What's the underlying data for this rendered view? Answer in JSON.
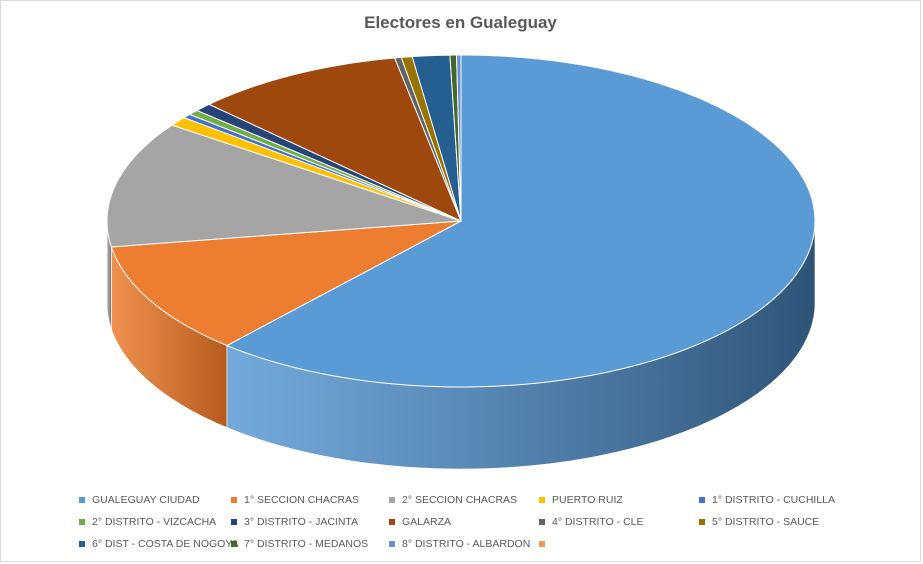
{
  "chart_data": {
    "type": "pie",
    "title": "Electores en Gualeguay",
    "style": "3d",
    "legend_position": "bottom",
    "slices": [
      {
        "label": "GUALEGUAY CIUDAD",
        "value": 61.5,
        "color": "#5b9bd5",
        "side_color": "#2f5478"
      },
      {
        "label": "1° SECCION CHACRAS",
        "value": 11.0,
        "color": "#ed7d31",
        "side_color": "#b55a1e"
      },
      {
        "label": "2° SECCION CHACRAS",
        "value": 12.3,
        "color": "#a5a5a5",
        "side_color": "#737373"
      },
      {
        "label": "PUERTO RUIZ",
        "value": 0.9,
        "color": "#ffc000",
        "side_color": "#b38600"
      },
      {
        "label": "1° DISTRITO - CUCHILLA",
        "value": 0.4,
        "color": "#4472c4",
        "side_color": "#2f4f8a"
      },
      {
        "label": "2° DISTRITO - VIZCACHA",
        "value": 0.5,
        "color": "#70ad47",
        "side_color": "#4e7a31"
      },
      {
        "label": "3° DISTRITO - JACINTA",
        "value": 0.8,
        "color": "#264478",
        "side_color": "#162a4a"
      },
      {
        "label": "GALARZA",
        "value": 9.6,
        "color": "#9e480e",
        "side_color": "#6e3209"
      },
      {
        "label": "4° DISTRITO - CLE",
        "value": 0.3,
        "color": "#636363",
        "side_color": "#404040"
      },
      {
        "label": "5° DISTRITO - SAUCE",
        "value": 0.5,
        "color": "#997300",
        "side_color": "#6b5000"
      },
      {
        "label": "6° DIST - COSTA DE NOGOYA",
        "value": 1.7,
        "color": "#255e91",
        "side_color": "#163a5b"
      },
      {
        "label": "7° DISTRITO - MEDANOS",
        "value": 0.3,
        "color": "#43682b",
        "side_color": "#2d461d"
      },
      {
        "label": "8° DISTRITO - ALBARDON",
        "value": 0.2,
        "color": "#698ed0",
        "side_color": "#4a659a"
      },
      {
        "label": "",
        "value": 0.0,
        "color": "#f1975a",
        "side_color": "#b06c3f"
      }
    ]
  }
}
